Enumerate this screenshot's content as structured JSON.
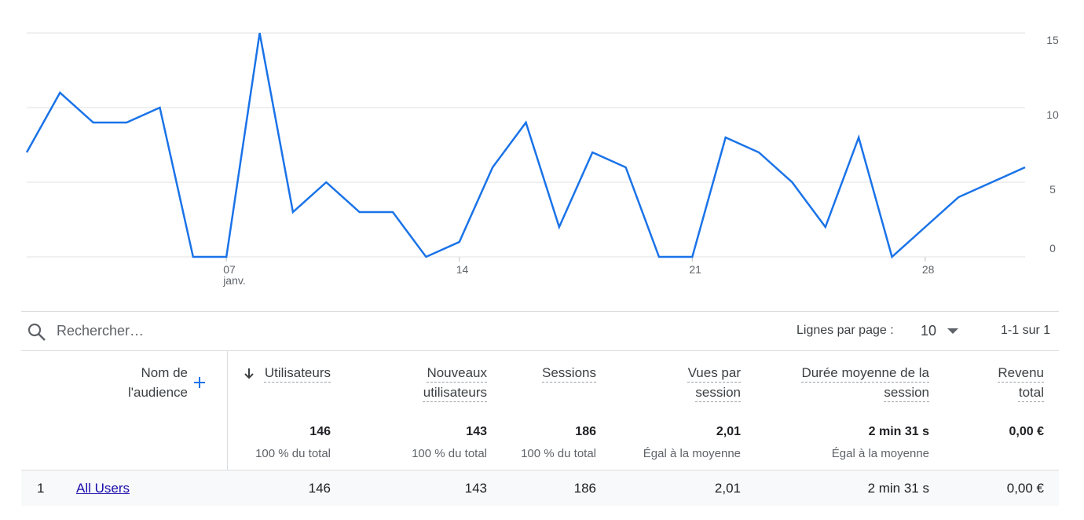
{
  "chart_data": {
    "type": "line",
    "x": [
      1,
      2,
      3,
      4,
      5,
      6,
      7,
      8,
      9,
      10,
      11,
      12,
      13,
      14,
      15,
      16,
      17,
      18,
      19,
      20,
      21,
      22,
      23,
      24,
      25,
      26,
      27,
      28,
      29,
      30,
      31
    ],
    "series": [
      {
        "name": "Utilisateurs",
        "color": "#1a73e8",
        "values": [
          7,
          11,
          9,
          9,
          10,
          0,
          0,
          15,
          3,
          5,
          3,
          3,
          0,
          1,
          6,
          9,
          2,
          7,
          6,
          0,
          0,
          8,
          7,
          5,
          2,
          8,
          0,
          2,
          4,
          5,
          6
        ]
      }
    ],
    "xlim": [
      1,
      31
    ],
    "xticks": [
      {
        "value": 7,
        "label": "07"
      },
      14,
      21,
      28
    ],
    "x_month_label": "janv.",
    "ylim": [
      0,
      15
    ],
    "yticks": [
      0,
      5,
      10,
      15
    ],
    "grid": true,
    "y_axis_side": "right"
  },
  "table": {
    "search_placeholder": "Rechercher…",
    "rows_per_page_label": "Lignes par page :",
    "rows_per_page": "10",
    "pagination": "1-1 sur 1",
    "columns": [
      "Nom de l'audience",
      "Utilisateurs",
      "Nouveaux utilisateurs",
      "Sessions",
      "Vues par session",
      "Durée moyenne de la session",
      "Revenu total"
    ],
    "totals": [
      {
        "value": "146",
        "note": "100 % du total"
      },
      {
        "value": "143",
        "note": "100 % du total"
      },
      {
        "value": "186",
        "note": "100 % du total"
      },
      {
        "value": "2,01",
        "note": "Égal à la moyenne"
      },
      {
        "value": "2 min 31 s",
        "note": "Égal à la moyenne"
      },
      {
        "value": "0,00 €",
        "note": ""
      }
    ],
    "rows": [
      [
        "1",
        "All Users",
        "146",
        "143",
        "186",
        "2,01",
        "2 min 31 s",
        "0,00 €"
      ]
    ]
  }
}
